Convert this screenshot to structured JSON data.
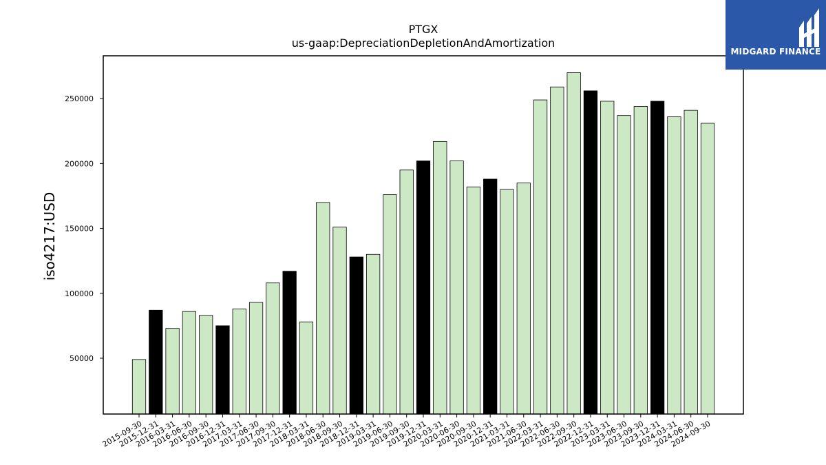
{
  "logo": {
    "text": "MIDGARD FINANCE",
    "bg_color": "#2b58a8"
  },
  "chart_data": {
    "type": "bar",
    "title": "PTGX",
    "subtitle": "us-gaap:DepreciationDepletionAndAmortization",
    "xlabel": "",
    "ylabel": "iso4217:USD",
    "ylim": [
      7000,
      283000
    ],
    "yticks": [
      50000,
      100000,
      150000,
      200000,
      250000
    ],
    "grid": false,
    "colors": {
      "default": "#cde8c5",
      "highlight": "#000000",
      "edge": "#000000"
    },
    "categories": [
      "2015-09-30",
      "2015-12-31",
      "2016-03-31",
      "2016-06-30",
      "2016-09-30",
      "2016-12-31",
      "2017-03-31",
      "2017-06-30",
      "2017-09-30",
      "2017-12-31",
      "2018-03-31",
      "2018-06-30",
      "2018-09-30",
      "2018-12-31",
      "2019-03-31",
      "2019-06-30",
      "2019-09-30",
      "2019-12-31",
      "2020-03-31",
      "2020-06-30",
      "2020-09-30",
      "2020-12-31",
      "2021-03-31",
      "2021-06-30",
      "2022-03-31",
      "2022-06-30",
      "2022-09-30",
      "2022-12-31",
      "2023-03-31",
      "2023-06-30",
      "2023-09-30",
      "2023-12-31",
      "2024-03-31",
      "2024-06-30",
      "2024-09-30"
    ],
    "values": [
      49000,
      87000,
      73000,
      86000,
      83000,
      75000,
      88000,
      93000,
      108000,
      117000,
      78000,
      170000,
      151000,
      128000,
      130000,
      176000,
      195000,
      202000,
      217000,
      202000,
      182000,
      188000,
      180000,
      185000,
      249000,
      259000,
      270000,
      256000,
      248000,
      237000,
      244000,
      248000,
      236000,
      241000,
      231000
    ],
    "highlighted": [
      "2015-12-31",
      "2016-12-31",
      "2017-12-31",
      "2018-12-31",
      "2019-12-31",
      "2020-12-31",
      "2022-12-31",
      "2023-12-31"
    ]
  }
}
